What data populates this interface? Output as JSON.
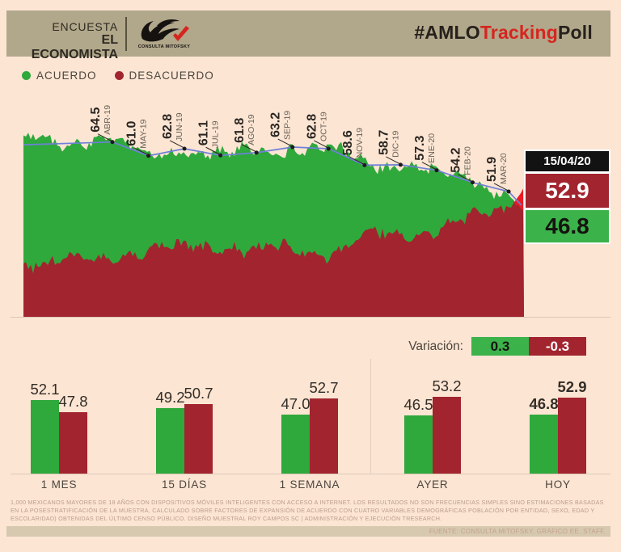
{
  "header": {
    "survey": {
      "line1": "ENCUESTA",
      "line2": "EL ECONOMISTA"
    },
    "logo_caption": "CONSULTA MITOFSKY",
    "hashtag_parts": [
      {
        "text": "#AMLO",
        "color": "#26211c"
      },
      {
        "text": "Tracking",
        "color": "#d6251f"
      },
      {
        "text": "Poll",
        "color": "#26211c"
      }
    ]
  },
  "legend": {
    "items": [
      {
        "label": "ACUERDO",
        "color": "#2fa83c"
      },
      {
        "label": "DESACUERDO",
        "color": "#a2242f"
      }
    ]
  },
  "chart_data": [
    {
      "type": "area",
      "title": "#AMLOTrackingPoll",
      "categories": [
        "ABR-19",
        "MAY-19",
        "JUN-19",
        "JUL-19",
        "AGO-19",
        "SEP-19",
        "OCT-19",
        "NOV-19",
        "DIC-19",
        "ENE-20",
        "FEB-20",
        "MAR-20"
      ],
      "series": [
        {
          "name": "ACUERDO",
          "color": "#2fa83c",
          "monthly_values": [
            64.5,
            61.0,
            62.8,
            61.1,
            61.8,
            63.2,
            62.8,
            58.6,
            58.7,
            57.3,
            54.2,
            51.9
          ],
          "latest": 46.8
        },
        {
          "name": "DESACUERDO",
          "color": "#a2242f",
          "monthly_values": [
            34.8,
            38.2,
            36.5,
            38.3,
            37.6,
            36.2,
            36.6,
            40.8,
            40.7,
            42.1,
            45.2,
            47.6
          ],
          "latest": 52.9
        }
      ],
      "latest_date": "15/04/20",
      "trend_line_color": "#6e80d8",
      "crossover_color": "#ec1b24",
      "ylim": [
        20,
        70
      ],
      "legend_position": "top-left",
      "grid": false
    },
    {
      "type": "bar",
      "categories": [
        "1 MES",
        "15 DÍAS",
        "1 SEMANA",
        "AYER",
        "HOY"
      ],
      "series": [
        {
          "name": "ACUERDO",
          "color": "#2fa83c",
          "values": [
            52.1,
            49.2,
            47.0,
            46.5,
            46.8
          ]
        },
        {
          "name": "DESACUERDO",
          "color": "#a2242f",
          "values": [
            47.8,
            50.7,
            52.7,
            53.2,
            52.9
          ]
        }
      ],
      "emphasized_category": "HOY"
    }
  ],
  "infobox": {
    "date": "15/04/20",
    "desacuerdo": "52.9",
    "acuerdo": "46.8"
  },
  "variacion": {
    "label": "Variación:",
    "acuerdo": "0.3",
    "desacuerdo": "-0.3"
  },
  "footnote": "1,000 MEXICANOS MAYORES DE 18 AÑOS CON DISPOSITIVOS MÓVILES INTELIGENTES CON ACCESO A INTERNET. LOS RESULTADOS NO SON FRECUENCIAS SIMPLES SINO ESTIMACIONES BASADAS EN LA POSESTRATIFICACIÓN DE LA MUESTRA, CALCULADO SOBRE FACTORES DE EXPANSIÓN DE ACUERDO CON CUATRO VARIABLES DEMOGRÁFICAS POBLACIÓN POR ENTIDAD, SEXO, EDAD Y ESCOLARIDAD) OBTENIDAS DEL ÚLTIMO CENSO PÚBLICO. DISEÑO MUESTRAL ROY CAMPOS SC | ADMINISTRACIÓN Y EJECUCIÓN TRESEARCH.",
  "source": "FUENTE: CONSULTA MITOFSKY. GRÁFICO EE. STAFF."
}
